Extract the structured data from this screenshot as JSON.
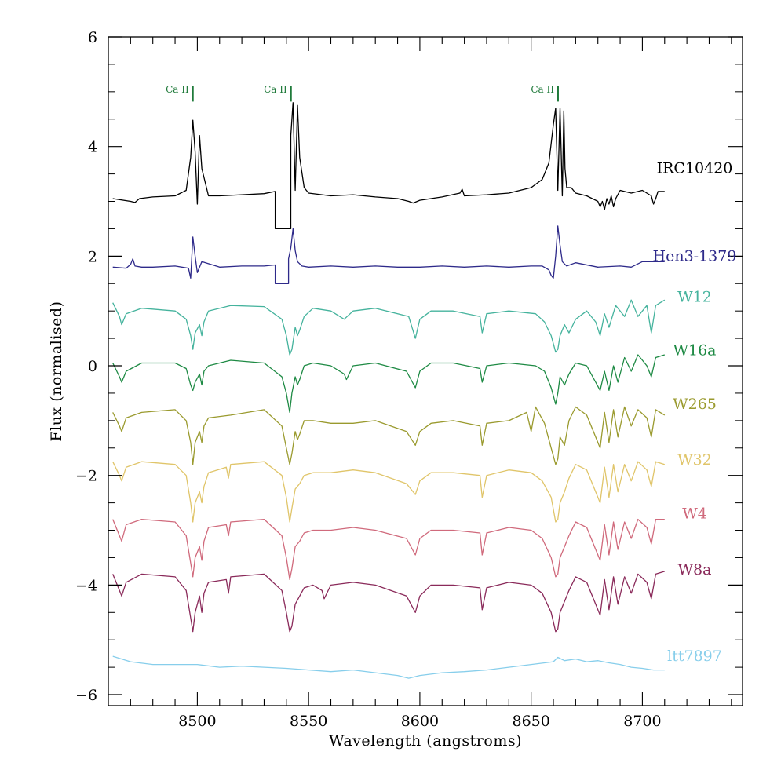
{
  "chart_data": {
    "type": "line",
    "title": "",
    "xlabel": "Wavelength (angstroms)",
    "ylabel": "Flux (normalised)",
    "xlim": [
      8460,
      8745
    ],
    "ylim": [
      -6.2,
      6
    ],
    "xticks": [
      8500,
      8550,
      8600,
      8650,
      8700
    ],
    "yticks": [
      -6,
      -4,
      -2,
      0,
      2,
      4,
      6
    ],
    "grid": false,
    "legend": "labels right of each spectrum",
    "line_annotations": [
      {
        "label": "Ca II",
        "wavelength": 8498.0,
        "color": "#1f7a3a"
      },
      {
        "label": "Ca II",
        "wavelength": 8542.1,
        "color": "#1f7a3a"
      },
      {
        "label": "Ca II",
        "wavelength": 8662.1,
        "color": "#1f7a3a"
      }
    ],
    "series": [
      {
        "name": "IRC10420",
        "color": "#000000",
        "label_y": 3.6,
        "x": [
          8462,
          8470,
          8472,
          8474,
          8480,
          8490,
          8495,
          8497,
          8498,
          8499,
          8500,
          8500.5,
          8501,
          8502,
          8505,
          8510,
          8520,
          8530,
          8535,
          8535,
          8542,
          8542,
          8543,
          8544,
          8545,
          8546,
          8548,
          8550,
          8560,
          8570,
          8580,
          8590,
          8595,
          8597,
          8600,
          8610,
          8618,
          8619,
          8620,
          8630,
          8640,
          8650,
          8655,
          8658,
          8660,
          8661,
          8662,
          8663,
          8664,
          8664.7,
          8665.2,
          8666,
          8668,
          8670,
          8675,
          8680,
          8681,
          8682,
          8683,
          8684,
          8685,
          8686,
          8687,
          8688,
          8690,
          8695,
          8700,
          8704,
          8705,
          8706,
          8707,
          8710
        ],
        "y": [
          3.05,
          3.0,
          2.98,
          3.05,
          3.08,
          3.1,
          3.2,
          3.8,
          4.48,
          3.9,
          2.95,
          3.6,
          4.2,
          3.6,
          3.1,
          3.1,
          3.12,
          3.14,
          3.18,
          2.5,
          2.5,
          4.2,
          4.8,
          3.2,
          4.75,
          3.8,
          3.25,
          3.15,
          3.1,
          3.12,
          3.08,
          3.05,
          3.0,
          2.97,
          3.02,
          3.08,
          3.15,
          3.22,
          3.1,
          3.12,
          3.15,
          3.25,
          3.4,
          3.7,
          4.4,
          4.7,
          3.2,
          4.7,
          3.1,
          4.65,
          3.6,
          3.25,
          3.25,
          3.15,
          3.1,
          3.0,
          2.9,
          3.0,
          2.85,
          3.05,
          2.95,
          3.1,
          2.9,
          3.05,
          3.2,
          3.15,
          3.2,
          3.1,
          2.95,
          3.05,
          3.18,
          3.18
        ]
      },
      {
        "name": "Hen3-1379",
        "color": "#2e2a8a",
        "label_y": 2.0,
        "x": [
          8462,
          8468,
          8470,
          8471,
          8472,
          8475,
          8480,
          8490,
          8496,
          8497,
          8498,
          8499,
          8500,
          8502,
          8510,
          8520,
          8530,
          8535,
          8535,
          8541,
          8541,
          8542,
          8543,
          8544,
          8545,
          8547,
          8550,
          8560,
          8570,
          8580,
          8590,
          8600,
          8610,
          8620,
          8630,
          8640,
          8650,
          8655,
          8658,
          8659,
          8660,
          8661,
          8662,
          8663,
          8664,
          8666,
          8670,
          8680,
          8690,
          8695,
          8700,
          8710
        ],
        "y": [
          1.8,
          1.78,
          1.85,
          1.95,
          1.82,
          1.8,
          1.8,
          1.82,
          1.78,
          1.6,
          2.35,
          2.0,
          1.7,
          1.9,
          1.8,
          1.82,
          1.82,
          1.84,
          1.5,
          1.5,
          1.95,
          2.15,
          2.5,
          2.1,
          1.9,
          1.82,
          1.8,
          1.82,
          1.8,
          1.82,
          1.8,
          1.8,
          1.82,
          1.8,
          1.82,
          1.8,
          1.82,
          1.82,
          1.75,
          1.65,
          1.6,
          2.0,
          2.55,
          2.2,
          1.9,
          1.82,
          1.88,
          1.8,
          1.82,
          1.8,
          1.9,
          1.9
        ]
      },
      {
        "name": "W12",
        "color": "#45b39d",
        "label_y": 1.25,
        "x": [
          8462,
          8465,
          8466,
          8468,
          8475,
          8490,
          8495,
          8497,
          8498,
          8499,
          8501,
          8502,
          8503,
          8505,
          8515,
          8530,
          8538,
          8540,
          8541.5,
          8542.5,
          8544,
          8545,
          8546,
          8548,
          8552,
          8560,
          8566,
          8570,
          8580,
          8595,
          8598,
          8600,
          8605,
          8615,
          8627,
          8628,
          8630,
          8640,
          8652,
          8656,
          8659,
          8661,
          8662,
          8663,
          8665,
          8667,
          8670,
          8675,
          8679,
          8681,
          8683,
          8685,
          8688,
          8692,
          8695,
          8698,
          8702,
          8704,
          8706,
          8710
        ],
        "y": [
          1.15,
          0.9,
          0.75,
          0.95,
          1.05,
          1.0,
          0.85,
          0.55,
          0.3,
          0.6,
          0.75,
          0.55,
          0.8,
          1.0,
          1.1,
          1.08,
          0.85,
          0.55,
          0.2,
          0.3,
          0.7,
          0.55,
          0.65,
          0.9,
          1.05,
          1.0,
          0.85,
          1.0,
          1.05,
          0.9,
          0.5,
          0.85,
          1.0,
          1.0,
          0.9,
          0.6,
          0.95,
          1.0,
          0.95,
          0.8,
          0.55,
          0.25,
          0.3,
          0.55,
          0.75,
          0.6,
          0.85,
          1.0,
          0.8,
          0.55,
          0.95,
          0.7,
          1.1,
          0.9,
          1.2,
          0.9,
          1.1,
          0.6,
          1.1,
          1.2
        ]
      },
      {
        "name": "W16a",
        "color": "#1e8a44",
        "label_y": 0.28,
        "x": [
          8462,
          8465,
          8466,
          8468,
          8475,
          8490,
          8495,
          8497,
          8498,
          8499,
          8501,
          8502,
          8503,
          8505,
          8515,
          8530,
          8538,
          8540,
          8541.5,
          8542.5,
          8544,
          8545,
          8546,
          8548,
          8552,
          8560,
          8566,
          8567,
          8570,
          8580,
          8594,
          8598,
          8600,
          8605,
          8615,
          8627,
          8628,
          8630,
          8640,
          8652,
          8656,
          8659,
          8661,
          8662,
          8663,
          8665,
          8667,
          8670,
          8675,
          8679,
          8681,
          8683,
          8685,
          8687,
          8689,
          8692,
          8695,
          8698,
          8702,
          8704,
          8706,
          8710
        ],
        "y": [
          0.05,
          -0.2,
          -0.3,
          -0.1,
          0.05,
          0.05,
          -0.05,
          -0.35,
          -0.45,
          -0.3,
          -0.15,
          -0.35,
          -0.1,
          0.0,
          0.1,
          0.05,
          -0.2,
          -0.5,
          -0.85,
          -0.5,
          -0.2,
          -0.35,
          -0.25,
          0.0,
          0.05,
          0.0,
          -0.15,
          -0.25,
          0.0,
          0.05,
          -0.1,
          -0.4,
          -0.1,
          0.05,
          0.05,
          -0.05,
          -0.3,
          0.0,
          0.05,
          0.0,
          -0.1,
          -0.4,
          -0.7,
          -0.5,
          -0.2,
          -0.35,
          -0.15,
          0.05,
          0.0,
          -0.3,
          -0.45,
          -0.1,
          -0.45,
          0.0,
          -0.3,
          0.15,
          -0.1,
          0.2,
          0.0,
          -0.2,
          0.15,
          0.2
        ]
      },
      {
        "name": "W265",
        "color": "#9a9a2e",
        "label_y": -0.7,
        "x": [
          8462,
          8465,
          8466,
          8468,
          8475,
          8490,
          8495,
          8497,
          8498,
          8499,
          8501,
          8502,
          8503,
          8505,
          8515,
          8530,
          8538,
          8540,
          8541.5,
          8542.5,
          8544,
          8545,
          8546,
          8548,
          8552,
          8560,
          8570,
          8580,
          8594,
          8598,
          8600,
          8605,
          8615,
          8627,
          8628,
          8630,
          8640,
          8648,
          8650,
          8652,
          8656,
          8659,
          8661,
          8662,
          8663,
          8665,
          8667,
          8670,
          8675,
          8679,
          8681,
          8683,
          8685,
          8687,
          8689,
          8692,
          8695,
          8698,
          8702,
          8704,
          8706,
          8710
        ],
        "y": [
          -0.85,
          -1.1,
          -1.2,
          -0.95,
          -0.85,
          -0.8,
          -1.0,
          -1.4,
          -1.8,
          -1.4,
          -1.2,
          -1.4,
          -1.1,
          -0.95,
          -0.9,
          -0.8,
          -1.1,
          -1.5,
          -1.8,
          -1.6,
          -1.2,
          -1.35,
          -1.25,
          -1.0,
          -1.0,
          -1.05,
          -1.05,
          -1.0,
          -1.2,
          -1.45,
          -1.2,
          -1.05,
          -1.0,
          -1.1,
          -1.45,
          -1.05,
          -1.0,
          -0.85,
          -1.2,
          -0.75,
          -1.05,
          -1.5,
          -1.8,
          -1.7,
          -1.3,
          -1.45,
          -1.0,
          -0.75,
          -0.9,
          -1.3,
          -1.5,
          -0.85,
          -1.4,
          -0.8,
          -1.3,
          -0.75,
          -1.1,
          -0.8,
          -0.95,
          -1.3,
          -0.8,
          -0.9
        ]
      },
      {
        "name": "W32",
        "color": "#e0c56a",
        "label_y": -1.72,
        "x": [
          8462,
          8465,
          8466,
          8468,
          8475,
          8490,
          8495,
          8497,
          8498,
          8499,
          8501,
          8502,
          8503,
          8505,
          8513,
          8514,
          8515,
          8530,
          8538,
          8540,
          8541.5,
          8542.5,
          8544,
          8546,
          8548,
          8552,
          8560,
          8570,
          8580,
          8594,
          8598,
          8600,
          8605,
          8615,
          8627,
          8628,
          8630,
          8640,
          8650,
          8655,
          8659,
          8661,
          8662,
          8663,
          8665,
          8667,
          8670,
          8675,
          8679,
          8681,
          8683,
          8685,
          8687,
          8689,
          8692,
          8695,
          8698,
          8702,
          8704,
          8706,
          8710
        ],
        "y": [
          -1.75,
          -2.0,
          -2.1,
          -1.85,
          -1.75,
          -1.8,
          -2.0,
          -2.5,
          -2.85,
          -2.5,
          -2.3,
          -2.5,
          -2.2,
          -1.95,
          -1.85,
          -2.05,
          -1.8,
          -1.75,
          -2.0,
          -2.4,
          -2.85,
          -2.6,
          -2.25,
          -2.15,
          -2.0,
          -1.95,
          -1.95,
          -1.9,
          -1.95,
          -2.15,
          -2.35,
          -2.1,
          -1.95,
          -1.95,
          -2.0,
          -2.4,
          -2.0,
          -1.9,
          -1.95,
          -2.1,
          -2.4,
          -2.85,
          -2.8,
          -2.5,
          -2.3,
          -2.05,
          -1.8,
          -1.9,
          -2.3,
          -2.5,
          -1.85,
          -2.4,
          -1.8,
          -2.3,
          -1.8,
          -2.1,
          -1.75,
          -1.9,
          -2.2,
          -1.75,
          -1.8
        ]
      },
      {
        "name": "W4",
        "color": "#d06a7c",
        "label_y": -2.7,
        "x": [
          8462,
          8465,
          8466,
          8468,
          8475,
          8490,
          8495,
          8497,
          8498,
          8499,
          8501,
          8502,
          8503,
          8505,
          8513,
          8514,
          8515,
          8530,
          8538,
          8540,
          8541.5,
          8542.5,
          8544,
          8546,
          8548,
          8552,
          8560,
          8570,
          8580,
          8594,
          8598,
          8600,
          8605,
          8615,
          8627,
          8628,
          8630,
          8640,
          8650,
          8655,
          8659,
          8661,
          8662,
          8663,
          8665,
          8667,
          8670,
          8675,
          8679,
          8681,
          8683,
          8685,
          8687,
          8689,
          8692,
          8695,
          8698,
          8702,
          8704,
          8706,
          8710
        ],
        "y": [
          -2.8,
          -3.1,
          -3.2,
          -2.9,
          -2.8,
          -2.85,
          -3.1,
          -3.6,
          -3.85,
          -3.5,
          -3.3,
          -3.55,
          -3.2,
          -2.95,
          -2.9,
          -3.1,
          -2.85,
          -2.8,
          -3.1,
          -3.5,
          -3.9,
          -3.7,
          -3.3,
          -3.2,
          -3.05,
          -3.0,
          -3.0,
          -2.95,
          -3.0,
          -3.15,
          -3.45,
          -3.15,
          -3.0,
          -3.0,
          -3.05,
          -3.45,
          -3.05,
          -2.95,
          -3.0,
          -3.15,
          -3.5,
          -3.85,
          -3.8,
          -3.5,
          -3.3,
          -3.1,
          -2.85,
          -2.95,
          -3.35,
          -3.55,
          -2.9,
          -3.45,
          -2.85,
          -3.35,
          -2.85,
          -3.15,
          -2.8,
          -2.95,
          -3.25,
          -2.8,
          -2.8
        ]
      },
      {
        "name": "W8a",
        "color": "#8a2a5a",
        "label_y": -3.72,
        "x": [
          8462,
          8465,
          8466,
          8468,
          8475,
          8490,
          8495,
          8497,
          8498,
          8499,
          8501,
          8502,
          8503,
          8505,
          8513,
          8514,
          8515,
          8530,
          8538,
          8540,
          8541.5,
          8542.5,
          8544,
          8546,
          8548,
          8552,
          8556,
          8557,
          8560,
          8570,
          8580,
          8594,
          8598,
          8600,
          8605,
          8615,
          8627,
          8628,
          8630,
          8640,
          8650,
          8655,
          8659,
          8661,
          8662,
          8663,
          8665,
          8667,
          8670,
          8675,
          8679,
          8681,
          8683,
          8685,
          8687,
          8689,
          8692,
          8695,
          8698,
          8702,
          8704,
          8706,
          8710
        ],
        "y": [
          -3.8,
          -4.1,
          -4.2,
          -3.95,
          -3.8,
          -3.85,
          -4.1,
          -4.6,
          -4.85,
          -4.5,
          -4.2,
          -4.5,
          -4.15,
          -3.95,
          -3.9,
          -4.15,
          -3.85,
          -3.8,
          -4.1,
          -4.5,
          -4.85,
          -4.75,
          -4.35,
          -4.2,
          -4.05,
          -4.0,
          -4.1,
          -4.25,
          -4.0,
          -3.95,
          -4.0,
          -4.2,
          -4.5,
          -4.2,
          -4.0,
          -4.0,
          -4.05,
          -4.45,
          -4.05,
          -3.95,
          -4.0,
          -4.15,
          -4.5,
          -4.85,
          -4.8,
          -4.5,
          -4.3,
          -4.1,
          -3.85,
          -3.95,
          -4.35,
          -4.55,
          -3.9,
          -4.45,
          -3.85,
          -4.35,
          -3.85,
          -4.15,
          -3.8,
          -3.95,
          -4.25,
          -3.8,
          -3.75
        ]
      },
      {
        "name": "ltt7897",
        "color": "#87ceeb",
        "label_y": -5.3,
        "x": [
          8462,
          8470,
          8480,
          8490,
          8500,
          8510,
          8520,
          8530,
          8540,
          8550,
          8560,
          8570,
          8580,
          8590,
          8595,
          8600,
          8610,
          8620,
          8630,
          8640,
          8650,
          8660,
          8662,
          8665,
          8670,
          8675,
          8680,
          8685,
          8690,
          8695,
          8700,
          8705,
          8710
        ],
        "y": [
          -5.3,
          -5.4,
          -5.45,
          -5.45,
          -5.45,
          -5.5,
          -5.48,
          -5.5,
          -5.52,
          -5.55,
          -5.58,
          -5.55,
          -5.6,
          -5.65,
          -5.7,
          -5.65,
          -5.6,
          -5.58,
          -5.55,
          -5.5,
          -5.45,
          -5.4,
          -5.32,
          -5.38,
          -5.35,
          -5.4,
          -5.38,
          -5.42,
          -5.45,
          -5.5,
          -5.52,
          -5.55,
          -5.55
        ]
      }
    ]
  }
}
